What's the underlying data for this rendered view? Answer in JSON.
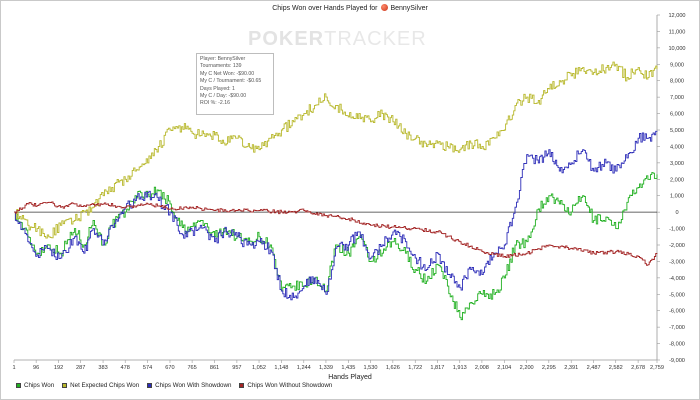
{
  "title": "Chips Won over Hands Played for",
  "player_name": "BennySilver",
  "watermark": {
    "bold": "POKER",
    "thin": "TRACKER"
  },
  "stats": [
    "Player: BennySilver",
    "Tournaments: 139",
    "My C Net Won: -$90.00",
    "My C / Tournament: -$0.65",
    "Days Played: 1",
    "My C / Day: -$90.00",
    "ROI %: -2.16"
  ],
  "x_axis_title": "Hands Played",
  "legend_labels": [
    "Chips Won",
    "Net Expected Chips Won",
    "Chips Won With Showdown",
    "Chips Won Without Showdown"
  ],
  "chart_data": {
    "type": "line",
    "title": "Chips Won over Hands Played for BennySilver",
    "xlabel": "Hands Played",
    "ylabel": "",
    "xlim": [
      1,
      2759
    ],
    "ylim": [
      -9000,
      12000
    ],
    "x_ticks": [
      "1",
      "96",
      "192",
      "287",
      "383",
      "478",
      "574",
      "670",
      "765",
      "861",
      "957",
      "1,052",
      "1,148",
      "1,244",
      "1,339",
      "1,435",
      "1,530",
      "1,626",
      "1,722",
      "1,817",
      "1,913",
      "2,008",
      "2,104",
      "2,200",
      "2,295",
      "2,391",
      "2,487",
      "2,582",
      "2,678",
      "2,759"
    ],
    "y_ticks": [
      "12,000",
      "11,000",
      "10,000",
      "9,000",
      "8,000",
      "7,000",
      "6,000",
      "5,000",
      "4,000",
      "3,000",
      "2,000",
      "1,000",
      "0",
      "-1,000",
      "-2,000",
      "-3,000",
      "-4,000",
      "-5,000",
      "-6,000",
      "-7,000",
      "-8,000",
      "-9,000"
    ],
    "grid": false,
    "legend": "bottom-left",
    "series": [
      {
        "name": "Chips Won",
        "color": "#22b022",
        "x": [
          1,
          60,
          100,
          150,
          200,
          260,
          300,
          340,
          383,
          420,
          478,
          520,
          574,
          620,
          670,
          700,
          740,
          800,
          861,
          900,
          957,
          1000,
          1052,
          1100,
          1148,
          1200,
          1244,
          1290,
          1339,
          1380,
          1435,
          1480,
          1530,
          1580,
          1626,
          1680,
          1722,
          1770,
          1817,
          1860,
          1913,
          1960,
          2008,
          2060,
          2104,
          2150,
          2200,
          2250,
          2295,
          2340,
          2391,
          2440,
          2487,
          2540,
          2582,
          2630,
          2678,
          2720,
          2759
        ],
        "y": [
          0,
          -1500,
          -2500,
          -2000,
          -2500,
          -1000,
          -2000,
          -500,
          -2000,
          -800,
          0,
          1000,
          1100,
          1300,
          500,
          -500,
          -1200,
          -500,
          -1500,
          -1000,
          -1500,
          -1800,
          -1500,
          -2000,
          -4800,
          -4500,
          -4500,
          -4000,
          -4800,
          -2000,
          -2500,
          -1500,
          -3000,
          -2500,
          -1800,
          -2500,
          -3500,
          -4200,
          -3200,
          -4500,
          -6400,
          -5500,
          -5000,
          -5000,
          -4000,
          -2000,
          -1800,
          200,
          1000,
          500,
          0,
          1000,
          -500,
          -300,
          -1000,
          600,
          1500,
          2000,
          2300
        ]
      },
      {
        "name": "Net Expected Chips Won",
        "color": "#b8b82c",
        "x": [
          1,
          60,
          100,
          150,
          200,
          260,
          300,
          340,
          383,
          420,
          478,
          520,
          574,
          620,
          670,
          720,
          765,
          820,
          861,
          900,
          957,
          1000,
          1052,
          1100,
          1148,
          1200,
          1244,
          1290,
          1339,
          1380,
          1435,
          1480,
          1530,
          1580,
          1626,
          1680,
          1722,
          1770,
          1817,
          1860,
          1913,
          1960,
          2008,
          2060,
          2104,
          2150,
          2200,
          2250,
          2295,
          2340,
          2391,
          2440,
          2487,
          2540,
          2582,
          2630,
          2678,
          2720,
          2759
        ],
        "y": [
          0,
          -800,
          -1000,
          -1500,
          -800,
          -500,
          0,
          300,
          1000,
          1500,
          2000,
          2500,
          3000,
          4000,
          5000,
          5200,
          4800,
          4600,
          4700,
          4200,
          4500,
          4000,
          3800,
          4500,
          5000,
          5500,
          6000,
          6500,
          7000,
          6500,
          5800,
          6000,
          5500,
          6000,
          5500,
          4800,
          4500,
          4000,
          4200,
          4000,
          3800,
          4200,
          4000,
          4500,
          5000,
          6500,
          7000,
          6800,
          7500,
          8000,
          8300,
          8800,
          8500,
          8800,
          9000,
          8200,
          8800,
          8200,
          8700
        ]
      },
      {
        "name": "Chips Won With Showdown",
        "color": "#2c2cb8",
        "x": [
          1,
          60,
          100,
          150,
          200,
          260,
          300,
          340,
          383,
          420,
          478,
          520,
          574,
          620,
          670,
          700,
          740,
          800,
          861,
          900,
          957,
          1000,
          1052,
          1100,
          1148,
          1200,
          1244,
          1290,
          1339,
          1380,
          1435,
          1480,
          1530,
          1580,
          1626,
          1680,
          1722,
          1770,
          1817,
          1860,
          1913,
          1960,
          2008,
          2060,
          2104,
          2150,
          2200,
          2250,
          2295,
          2340,
          2391,
          2440,
          2487,
          2540,
          2582,
          2630,
          2678,
          2720,
          2759
        ],
        "y": [
          0,
          -1800,
          -2600,
          -2200,
          -2800,
          -1500,
          -2500,
          -1000,
          -2000,
          -800,
          300,
          700,
          1200,
          700,
          0,
          -800,
          -1500,
          -800,
          -1800,
          -1200,
          -1500,
          -2000,
          -1800,
          -2300,
          -4800,
          -5200,
          -4500,
          -4000,
          -5000,
          -2200,
          -2000,
          -1200,
          -2800,
          -2000,
          -1200,
          -1800,
          -2800,
          -3500,
          -2500,
          -3800,
          -4600,
          -3500,
          -3800,
          -2500,
          -2000,
          300,
          3500,
          3000,
          3800,
          2500,
          3000,
          3800,
          2500,
          3000,
          2500,
          3300,
          4500,
          4500,
          4900
        ]
      },
      {
        "name": "Chips Won Without Showdown",
        "color": "#a32424",
        "x": [
          1,
          60,
          100,
          150,
          200,
          260,
          300,
          383,
          478,
          574,
          670,
          765,
          861,
          957,
          1052,
          1148,
          1244,
          1339,
          1435,
          1530,
          1626,
          1722,
          1817,
          1913,
          2008,
          2104,
          2200,
          2295,
          2391,
          2487,
          2582,
          2678,
          2720,
          2759
        ],
        "y": [
          0,
          500,
          400,
          600,
          300,
          500,
          400,
          500,
          300,
          500,
          200,
          300,
          100,
          100,
          100,
          0,
          100,
          -200,
          -400,
          -800,
          -900,
          -1000,
          -1200,
          -1800,
          -2400,
          -2700,
          -2500,
          -2000,
          -2200,
          -2500,
          -2400,
          -2700,
          -3200,
          -2500
        ]
      }
    ]
  }
}
